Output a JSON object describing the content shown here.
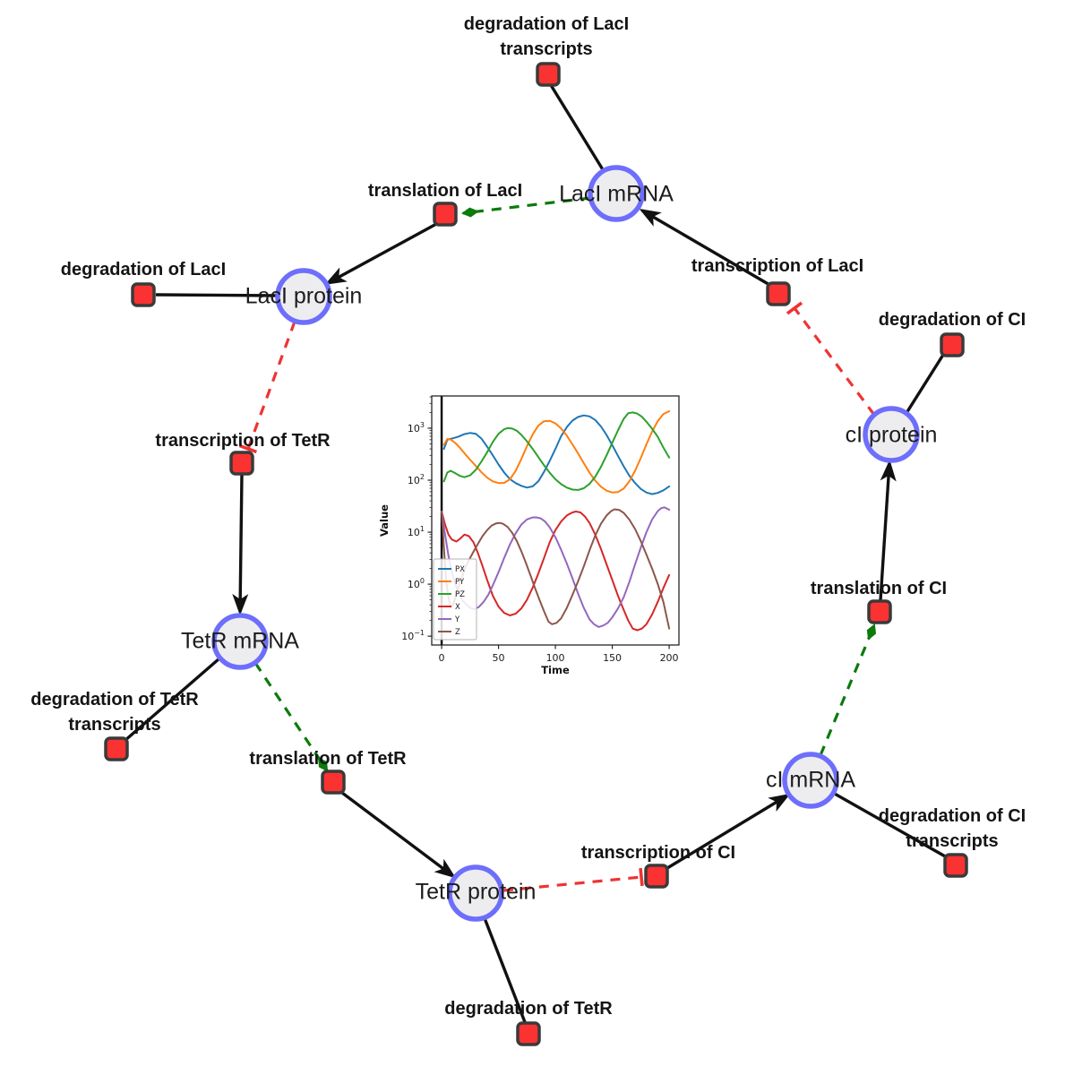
{
  "network": {
    "species": [
      {
        "id": "laci_mrna",
        "label": "LacI mRNA"
      },
      {
        "id": "laci_protein",
        "label": "LacI protein"
      },
      {
        "id": "tetr_mrna",
        "label": "TetR mRNA"
      },
      {
        "id": "tetr_protein",
        "label": "TetR protein"
      },
      {
        "id": "ci_mrna",
        "label": "cI mRNA"
      },
      {
        "id": "ci_protein",
        "label": "cI protein"
      }
    ],
    "reactions": [
      {
        "id": "deg_laci_transcripts",
        "lines": [
          "degradation of LacI",
          "transcripts"
        ]
      },
      {
        "id": "translation_laci",
        "lines": [
          "translation of LacI"
        ]
      },
      {
        "id": "transcription_laci",
        "lines": [
          "transcription of LacI"
        ]
      },
      {
        "id": "deg_laci",
        "lines": [
          "degradation of LacI"
        ]
      },
      {
        "id": "deg_ci",
        "lines": [
          "degradation of CI"
        ]
      },
      {
        "id": "transcription_tetr",
        "lines": [
          "transcription of TetR"
        ]
      },
      {
        "id": "translation_ci",
        "lines": [
          "translation of CI"
        ]
      },
      {
        "id": "deg_tetr_transcripts",
        "lines": [
          "degradation of TetR",
          "transcripts"
        ]
      },
      {
        "id": "translation_tetr",
        "lines": [
          "translation of TetR"
        ]
      },
      {
        "id": "deg_ci_transcripts",
        "lines": [
          "degradation of CI",
          "transcripts"
        ]
      },
      {
        "id": "transcription_ci",
        "lines": [
          "transcription of CI"
        ]
      },
      {
        "id": "deg_tetr",
        "lines": [
          "degradation of TetR"
        ]
      }
    ],
    "edge_types": {
      "reaction_flow": {
        "color": "#111111",
        "style": "solid"
      },
      "activation": {
        "color": "#0c7a0c",
        "style": "dashed",
        "head": "diamond-arrow"
      },
      "inhibition": {
        "color": "#ee3333",
        "style": "dashed",
        "head": "t-bar"
      }
    },
    "colors": {
      "species_fill": "#ededf0",
      "species_border": "#6e6efc",
      "reaction_fill": "#fa3232",
      "reaction_border": "#3a3a3a",
      "label_text": "#141414"
    }
  },
  "chart_data": {
    "type": "line",
    "title": "",
    "xlabel": "Time",
    "ylabel": "Value",
    "y_scale": "log",
    "x_ticks": [
      0,
      50,
      100,
      150,
      200
    ],
    "y_tick_exponents": [
      -1,
      0,
      1,
      2,
      3
    ],
    "xlim": [
      -8.7,
      208.6
    ],
    "ylim_log10": [
      -1.17,
      3.62
    ],
    "grid": false,
    "legend_position": "lower left",
    "annotations": [
      {
        "type": "vline",
        "x": 0,
        "color": "#000000"
      }
    ],
    "series": [
      {
        "name": "PX",
        "color": "#1f77b4",
        "points": [
          [
            2,
            400
          ],
          [
            5,
            600
          ],
          [
            10,
            640
          ],
          [
            15,
            690
          ],
          [
            20,
            770
          ],
          [
            25,
            810
          ],
          [
            30,
            780
          ],
          [
            35,
            630
          ],
          [
            40,
            440
          ],
          [
            45,
            300
          ],
          [
            50,
            200
          ],
          [
            55,
            140
          ],
          [
            60,
            105
          ],
          [
            65,
            88
          ],
          [
            70,
            78
          ],
          [
            75,
            72
          ],
          [
            80,
            76
          ],
          [
            85,
            95
          ],
          [
            90,
            145
          ],
          [
            95,
            235
          ],
          [
            100,
            400
          ],
          [
            105,
            700
          ],
          [
            110,
            1050
          ],
          [
            115,
            1400
          ],
          [
            120,
            1650
          ],
          [
            125,
            1760
          ],
          [
            130,
            1690
          ],
          [
            135,
            1440
          ],
          [
            140,
            1080
          ],
          [
            145,
            740
          ],
          [
            150,
            470
          ],
          [
            155,
            295
          ],
          [
            160,
            185
          ],
          [
            165,
            122
          ],
          [
            170,
            88
          ],
          [
            175,
            68
          ],
          [
            180,
            58
          ],
          [
            185,
            54
          ],
          [
            190,
            57
          ],
          [
            195,
            64
          ],
          [
            200,
            76
          ]
        ]
      },
      {
        "name": "PY",
        "color": "#ff7f0e",
        "points": [
          [
            2,
            480
          ],
          [
            5,
            620
          ],
          [
            8,
            605
          ],
          [
            12,
            520
          ],
          [
            16,
            420
          ],
          [
            20,
            330
          ],
          [
            25,
            248
          ],
          [
            30,
            188
          ],
          [
            35,
            142
          ],
          [
            40,
            112
          ],
          [
            45,
            95
          ],
          [
            50,
            88
          ],
          [
            55,
            89
          ],
          [
            60,
            104
          ],
          [
            65,
            150
          ],
          [
            70,
            255
          ],
          [
            75,
            450
          ],
          [
            80,
            760
          ],
          [
            85,
            1120
          ],
          [
            90,
            1360
          ],
          [
            95,
            1390
          ],
          [
            100,
            1240
          ],
          [
            105,
            990
          ],
          [
            110,
            720
          ],
          [
            115,
            490
          ],
          [
            120,
            325
          ],
          [
            125,
            212
          ],
          [
            130,
            139
          ],
          [
            135,
            98
          ],
          [
            140,
            75
          ],
          [
            145,
            63
          ],
          [
            150,
            58
          ],
          [
            155,
            59
          ],
          [
            160,
            69
          ],
          [
            165,
            95
          ],
          [
            170,
            152
          ],
          [
            175,
            265
          ],
          [
            180,
            490
          ],
          [
            185,
            860
          ],
          [
            190,
            1370
          ],
          [
            195,
            1880
          ],
          [
            200,
            2120
          ]
        ]
      },
      {
        "name": "PZ",
        "color": "#2ca02c",
        "points": [
          [
            2,
            95
          ],
          [
            5,
            140
          ],
          [
            8,
            152
          ],
          [
            12,
            136
          ],
          [
            16,
            121
          ],
          [
            20,
            114
          ],
          [
            25,
            124
          ],
          [
            30,
            158
          ],
          [
            35,
            228
          ],
          [
            40,
            345
          ],
          [
            45,
            545
          ],
          [
            50,
            780
          ],
          [
            55,
            955
          ],
          [
            58,
            1005
          ],
          [
            62,
            985
          ],
          [
            66,
            895
          ],
          [
            70,
            745
          ],
          [
            75,
            560
          ],
          [
            80,
            400
          ],
          [
            85,
            278
          ],
          [
            90,
            193
          ],
          [
            95,
            139
          ],
          [
            100,
            104
          ],
          [
            105,
            84
          ],
          [
            110,
            72
          ],
          [
            115,
            66
          ],
          [
            120,
            65
          ],
          [
            125,
            70
          ],
          [
            130,
            85
          ],
          [
            135,
            116
          ],
          [
            140,
            180
          ],
          [
            145,
            300
          ],
          [
            150,
            525
          ],
          [
            155,
            905
          ],
          [
            160,
            1510
          ],
          [
            164,
            1950
          ],
          [
            168,
            2010
          ],
          [
            172,
            1910
          ],
          [
            176,
            1660
          ],
          [
            180,
            1330
          ],
          [
            185,
            980
          ],
          [
            190,
            680
          ],
          [
            195,
            420
          ],
          [
            200,
            272
          ]
        ]
      },
      {
        "name": "X",
        "color": "#d62728",
        "points": [
          [
            0,
            25
          ],
          [
            3,
            14
          ],
          [
            6,
            9
          ],
          [
            9,
            7.2
          ],
          [
            13,
            6.6
          ],
          [
            16,
            7.4
          ],
          [
            20,
            9
          ],
          [
            24,
            8.4
          ],
          [
            28,
            6.4
          ],
          [
            32,
            3.9
          ],
          [
            36,
            2.2
          ],
          [
            40,
            1.2
          ],
          [
            45,
            0.6
          ],
          [
            50,
            0.37
          ],
          [
            55,
            0.28
          ],
          [
            60,
            0.25
          ],
          [
            65,
            0.27
          ],
          [
            70,
            0.34
          ],
          [
            75,
            0.5
          ],
          [
            80,
            0.86
          ],
          [
            85,
            1.6
          ],
          [
            90,
            3.2
          ],
          [
            95,
            6.4
          ],
          [
            100,
            11
          ],
          [
            105,
            16
          ],
          [
            110,
            21
          ],
          [
            115,
            24
          ],
          [
            118,
            25
          ],
          [
            122,
            24
          ],
          [
            126,
            20
          ],
          [
            130,
            15
          ],
          [
            135,
            9
          ],
          [
            140,
            4.8
          ],
          [
            145,
            2.4
          ],
          [
            150,
            1.2
          ],
          [
            155,
            0.6
          ],
          [
            160,
            0.32
          ],
          [
            164,
            0.2
          ],
          [
            168,
            0.14
          ],
          [
            172,
            0.13
          ],
          [
            176,
            0.14
          ],
          [
            180,
            0.17
          ],
          [
            185,
            0.26
          ],
          [
            190,
            0.46
          ],
          [
            195,
            0.85
          ],
          [
            200,
            1.5
          ]
        ]
      },
      {
        "name": "Y",
        "color": "#9467bd",
        "points": [
          [
            0,
            25
          ],
          [
            3,
            9
          ],
          [
            6,
            3.5
          ],
          [
            10,
            1.4
          ],
          [
            14,
            0.75
          ],
          [
            18,
            0.5
          ],
          [
            22,
            0.4
          ],
          [
            26,
            0.34
          ],
          [
            29,
            0.33
          ],
          [
            33,
            0.37
          ],
          [
            37,
            0.46
          ],
          [
            41,
            0.62
          ],
          [
            45,
            0.95
          ],
          [
            50,
            1.7
          ],
          [
            55,
            3.2
          ],
          [
            60,
            5.8
          ],
          [
            65,
            9.5
          ],
          [
            70,
            14
          ],
          [
            75,
            17.6
          ],
          [
            80,
            19.2
          ],
          [
            83,
            19.3
          ],
          [
            87,
            18.5
          ],
          [
            91,
            16
          ],
          [
            95,
            12.4
          ],
          [
            100,
            8
          ],
          [
            105,
            4.6
          ],
          [
            110,
            2.5
          ],
          [
            115,
            1.3
          ],
          [
            120,
            0.65
          ],
          [
            125,
            0.35
          ],
          [
            130,
            0.21
          ],
          [
            134,
            0.17
          ],
          [
            138,
            0.15
          ],
          [
            142,
            0.16
          ],
          [
            146,
            0.18
          ],
          [
            150,
            0.23
          ],
          [
            155,
            0.34
          ],
          [
            160,
            0.56
          ],
          [
            165,
            1.1
          ],
          [
            170,
            2.4
          ],
          [
            175,
            5
          ],
          [
            180,
            10
          ],
          [
            185,
            17.5
          ],
          [
            190,
            25.5
          ],
          [
            193,
            29
          ],
          [
            196,
            30
          ],
          [
            200,
            27
          ]
        ]
      },
      {
        "name": "Z",
        "color": "#8c564b",
        "points": [
          [
            0,
            25
          ],
          [
            2,
            5
          ],
          [
            4,
            1.2
          ],
          [
            6,
            0.55
          ],
          [
            8,
            0.36
          ],
          [
            10,
            0.4
          ],
          [
            12,
            0.55
          ],
          [
            14,
            0.78
          ],
          [
            17,
            1.2
          ],
          [
            20,
            1.9
          ],
          [
            24,
            2.9
          ],
          [
            28,
            4.2
          ],
          [
            32,
            6
          ],
          [
            36,
            8.5
          ],
          [
            40,
            11
          ],
          [
            44,
            13.4
          ],
          [
            48,
            14.8
          ],
          [
            51,
            15.1
          ],
          [
            54,
            14.5
          ],
          [
            58,
            12.6
          ],
          [
            62,
            9.7
          ],
          [
            66,
            6.8
          ],
          [
            70,
            4.3
          ],
          [
            74,
            2.6
          ],
          [
            78,
            1.5
          ],
          [
            82,
            0.85
          ],
          [
            86,
            0.5
          ],
          [
            90,
            0.3
          ],
          [
            94,
            0.19
          ],
          [
            97,
            0.17
          ],
          [
            101,
            0.18
          ],
          [
            105,
            0.22
          ],
          [
            110,
            0.35
          ],
          [
            115,
            0.62
          ],
          [
            120,
            1.15
          ],
          [
            125,
            2.2
          ],
          [
            130,
            4.5
          ],
          [
            135,
            8.6
          ],
          [
            140,
            14.5
          ],
          [
            145,
            21
          ],
          [
            149,
            25.5
          ],
          [
            152,
            27.6
          ],
          [
            156,
            26.8
          ],
          [
            160,
            23.5
          ],
          [
            165,
            17.5
          ],
          [
            170,
            11.5
          ],
          [
            175,
            6.8
          ],
          [
            180,
            3.7
          ],
          [
            185,
            2
          ],
          [
            190,
            1
          ],
          [
            195,
            0.45
          ],
          [
            200,
            0.14
          ]
        ]
      }
    ]
  }
}
